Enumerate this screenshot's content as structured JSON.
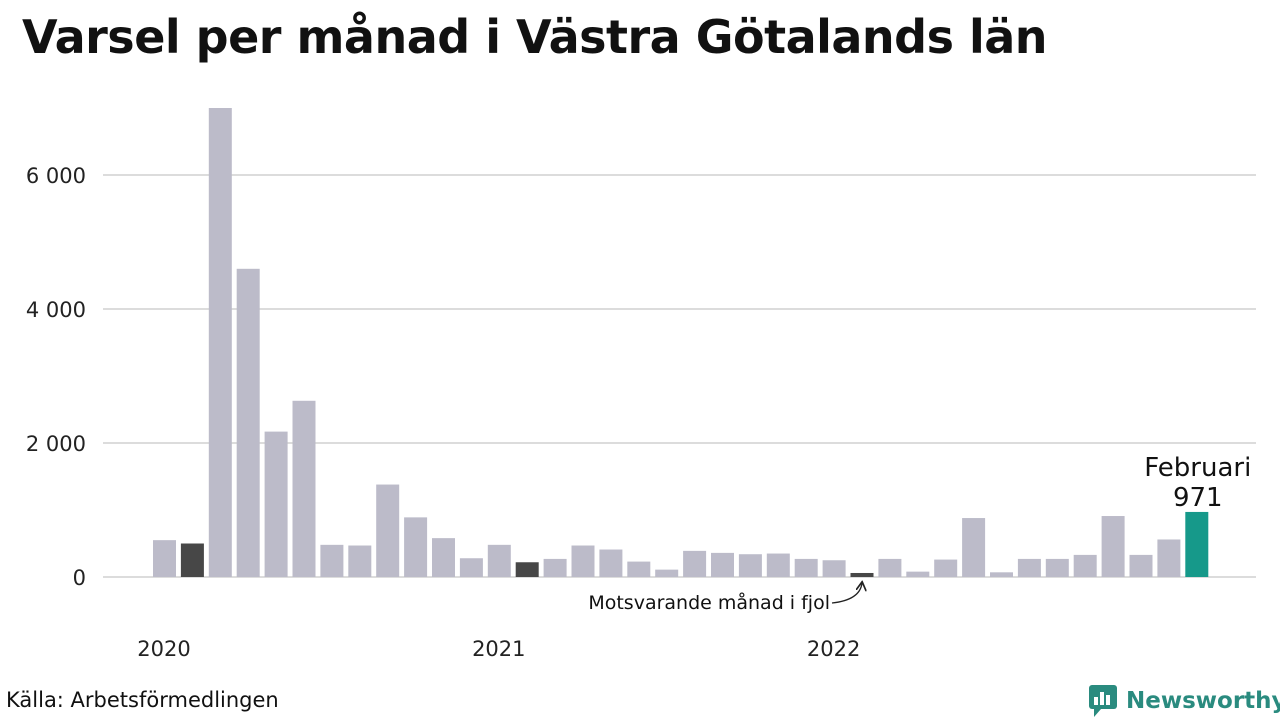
{
  "title": "Varsel per månad i Västra Götalands län",
  "source": "Källa: Arbetsförmedlingen",
  "brand": "Newsworthy",
  "colors": {
    "bar": "#bcbbc9",
    "same_month_last_year": "#474747",
    "highlight": "#16998a",
    "grid": "#dcdcdc",
    "brand": "#2a8b7f"
  },
  "chart_data": {
    "type": "bar",
    "title": "Varsel per månad i Västra Götalands län",
    "xlabel": "",
    "ylabel": "",
    "ylim": [
      0,
      7000
    ],
    "yticks": [
      0,
      2000,
      4000,
      6000
    ],
    "ytick_labels": [
      "0",
      "2 000",
      "4 000",
      "6 000"
    ],
    "grid": true,
    "categories": [
      "2020-01",
      "2020-02",
      "2020-03",
      "2020-04",
      "2020-05",
      "2020-06",
      "2020-07",
      "2020-08",
      "2020-09",
      "2020-10",
      "2020-11",
      "2020-12",
      "2021-01",
      "2021-02",
      "2021-03",
      "2021-04",
      "2021-05",
      "2021-06",
      "2021-07",
      "2021-08",
      "2021-09",
      "2021-10",
      "2021-11",
      "2021-12",
      "2022-01",
      "2022-02",
      "2022-03",
      "2022-04",
      "2022-05",
      "2022-06",
      "2022-07",
      "2022-08",
      "2022-09",
      "2022-10",
      "2022-11",
      "2022-12",
      "2023-01",
      "2023-02"
    ],
    "values": [
      550,
      500,
      7000,
      4600,
      2170,
      2630,
      480,
      470,
      1380,
      890,
      580,
      280,
      480,
      220,
      270,
      470,
      410,
      230,
      110,
      390,
      360,
      340,
      350,
      270,
      250,
      60,
      270,
      80,
      260,
      880,
      70,
      270,
      270,
      330,
      910,
      330,
      560,
      971
    ],
    "bar_kind": [
      "normal",
      "last_year",
      "normal",
      "normal",
      "normal",
      "normal",
      "normal",
      "normal",
      "normal",
      "normal",
      "normal",
      "normal",
      "normal",
      "last_year",
      "normal",
      "normal",
      "normal",
      "normal",
      "normal",
      "normal",
      "normal",
      "normal",
      "normal",
      "normal",
      "normal",
      "last_year",
      "normal",
      "normal",
      "normal",
      "normal",
      "normal",
      "normal",
      "normal",
      "normal",
      "normal",
      "normal",
      "normal",
      "highlight"
    ],
    "x_year_labels": [
      {
        "label": "2020",
        "index": 0
      },
      {
        "label": "2021",
        "index": 12
      },
      {
        "label": "2022",
        "index": 24
      }
    ],
    "highlight_label": {
      "month": "Februari",
      "value": "971",
      "index": 37
    },
    "annotation": {
      "text": "Motsvarande månad i fjol",
      "index": 25
    }
  }
}
